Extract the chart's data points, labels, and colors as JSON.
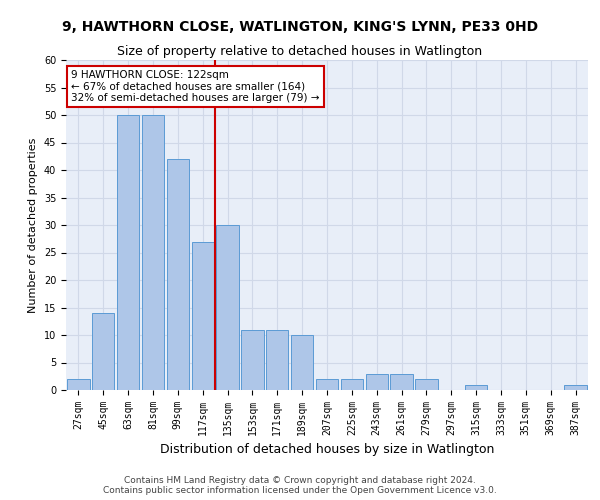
{
  "title": "9, HAWTHORN CLOSE, WATLINGTON, KING'S LYNN, PE33 0HD",
  "subtitle": "Size of property relative to detached houses in Watlington",
  "xlabel": "Distribution of detached houses by size in Watlington",
  "ylabel": "Number of detached properties",
  "categories": [
    "27sqm",
    "45sqm",
    "63sqm",
    "81sqm",
    "99sqm",
    "117sqm",
    "135sqm",
    "153sqm",
    "171sqm",
    "189sqm",
    "207sqm",
    "225sqm",
    "243sqm",
    "261sqm",
    "279sqm",
    "297sqm",
    "315sqm",
    "333sqm",
    "351sqm",
    "369sqm",
    "387sqm"
  ],
  "values": [
    2,
    14,
    50,
    50,
    42,
    27,
    30,
    11,
    11,
    10,
    2,
    2,
    3,
    3,
    2,
    0,
    1,
    0,
    0,
    0,
    1
  ],
  "bar_color": "#aec6e8",
  "bar_edge_color": "#5b9bd5",
  "vline_x": 5.5,
  "marker_label": "9 HAWTHORN CLOSE: 122sqm",
  "annotation_line1": "← 67% of detached houses are smaller (164)",
  "annotation_line2": "32% of semi-detached houses are larger (79) →",
  "annotation_color": "#cc0000",
  "vline_color": "#cc0000",
  "grid_color": "#d0d8e8",
  "footer1": "Contains HM Land Registry data © Crown copyright and database right 2024.",
  "footer2": "Contains public sector information licensed under the Open Government Licence v3.0.",
  "ylim": [
    0,
    60
  ],
  "yticks": [
    0,
    5,
    10,
    15,
    20,
    25,
    30,
    35,
    40,
    45,
    50,
    55,
    60
  ],
  "bg_color": "#e8eef8",
  "title_fontsize": 10,
  "subtitle_fontsize": 9,
  "ylabel_fontsize": 8,
  "xlabel_fontsize": 9,
  "tick_fontsize": 7,
  "annotation_fontsize": 7.5
}
